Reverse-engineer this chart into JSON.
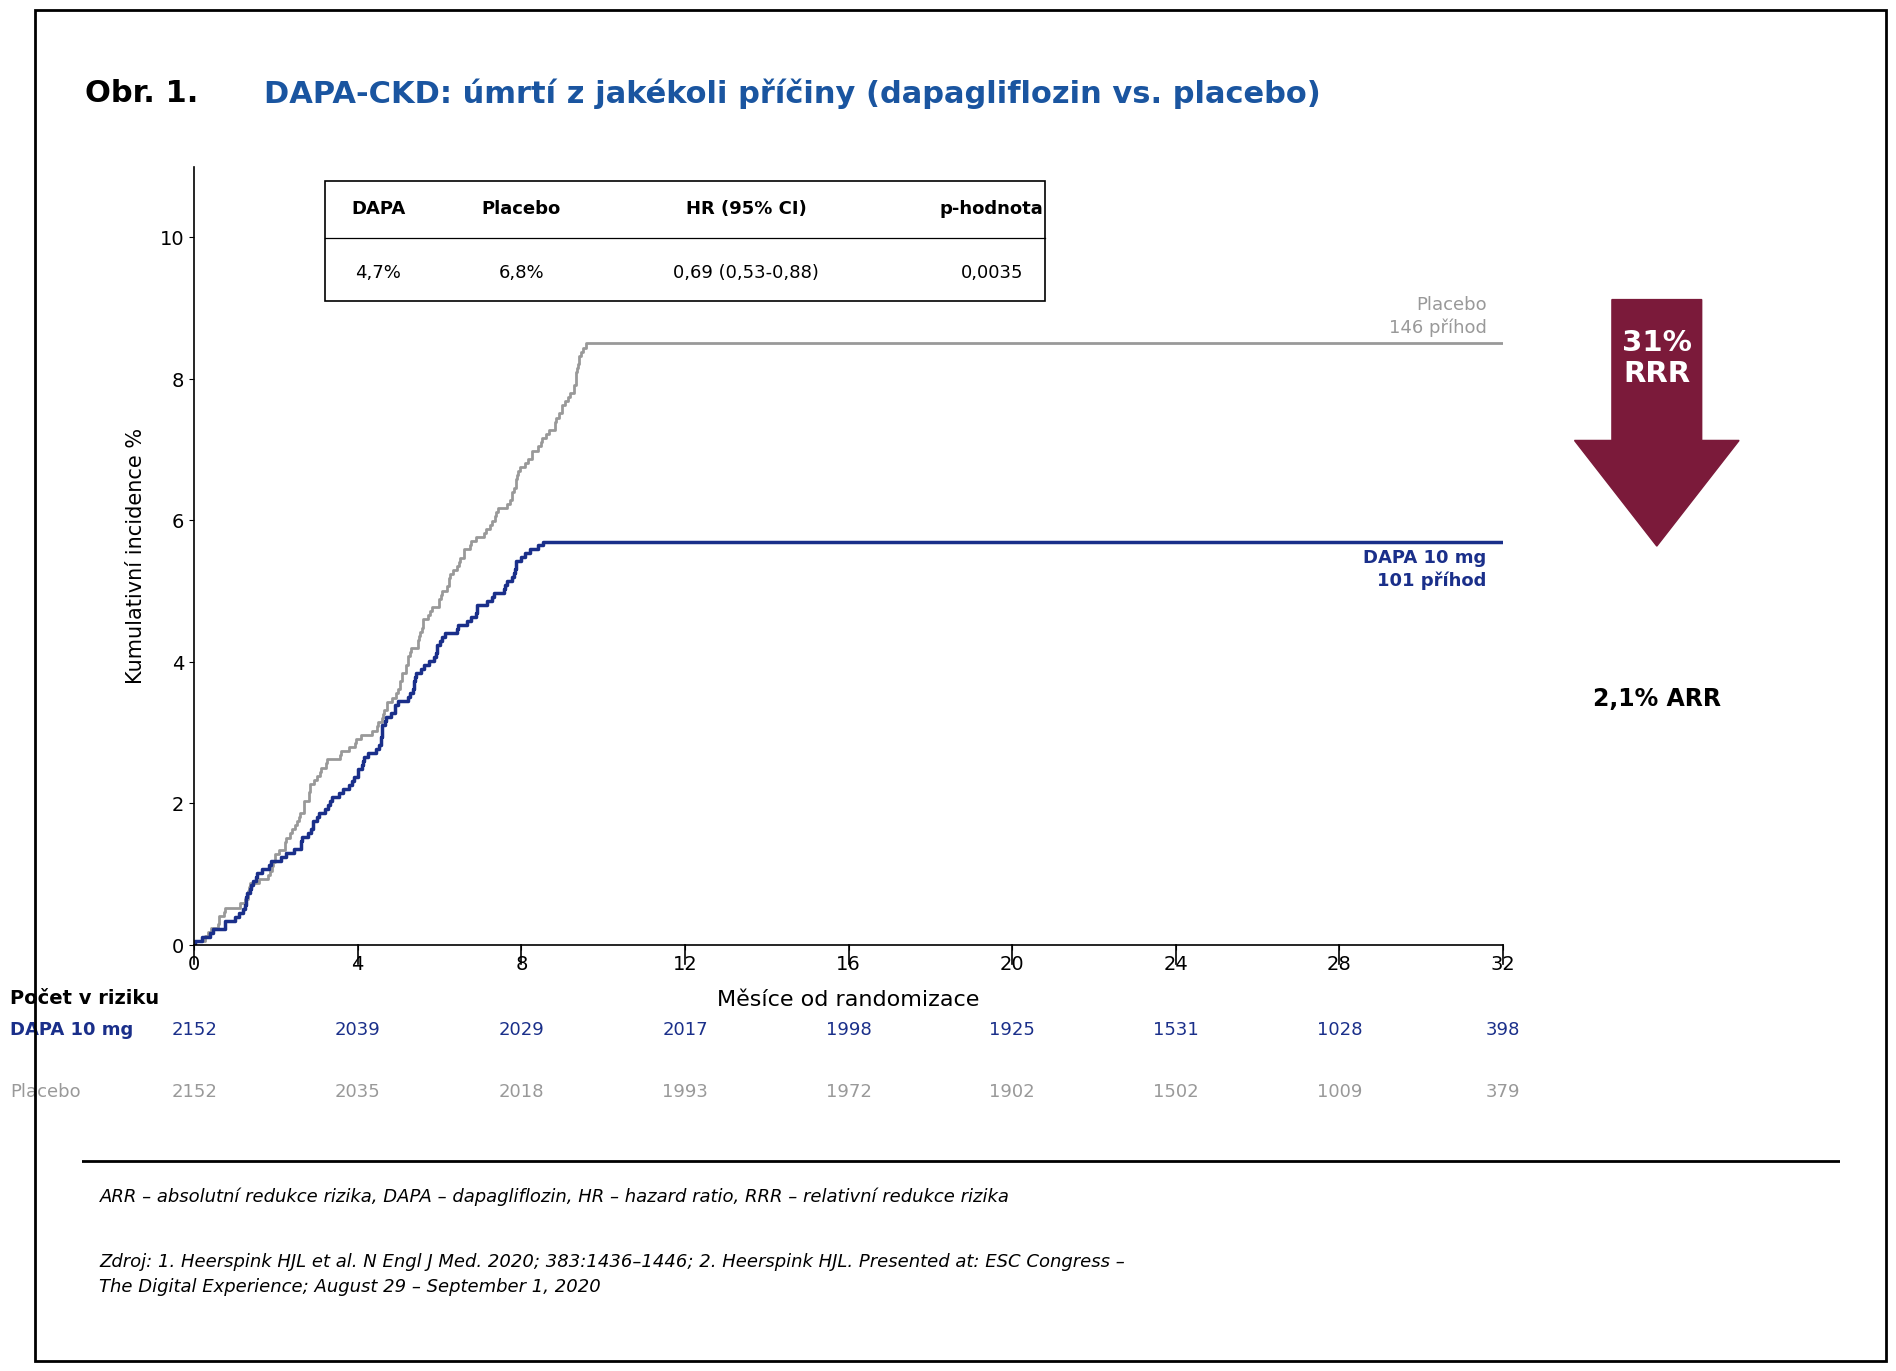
{
  "title_black": "Obr. 1. ",
  "title_blue": "DAPA-CKD: úmrtí z jakékoli příčiny (dapagliflozin vs. placebo)",
  "ylabel": "Kumulativní incidence %",
  "xlabel": "Měsíce od randomizace",
  "xlim": [
    0,
    32
  ],
  "ylim": [
    0,
    11
  ],
  "yticks": [
    0,
    2,
    4,
    6,
    8,
    10
  ],
  "xticks": [
    0,
    4,
    8,
    12,
    16,
    20,
    24,
    28,
    32
  ],
  "dapa_color": "#1a2f8a",
  "placebo_color": "#999999",
  "arrow_color": "#7b1a3a",
  "table_header": [
    "DAPA",
    "Placebo",
    "HR (95% CI)",
    "p-hodnota"
  ],
  "table_row": [
    "4,7%",
    "6,8%",
    "0,69 (0,53-0,88)",
    "0,0035"
  ],
  "dapa_label": "DAPA 10 mg\n101 příhod",
  "placebo_label": "Placebo\n146 příhod",
  "rrr_text": "31%\nRRR",
  "arr_text": "2,1% ARR",
  "risk_header": "Počet v riziku",
  "risk_dapa_label": "DAPA 10 mg",
  "risk_placebo_label": "Placebo",
  "risk_times": [
    0,
    4,
    8,
    12,
    16,
    20,
    24,
    28,
    32
  ],
  "risk_dapa": [
    2152,
    2039,
    2029,
    2017,
    1998,
    1925,
    1531,
    1028,
    398
  ],
  "risk_placebo": [
    2152,
    2035,
    2018,
    1993,
    1972,
    1902,
    1502,
    1009,
    379
  ],
  "footnote1": "ARR – absolutní redukce rizika, DAPA – dapagliflozin, HR – hazard ratio, RRR – relativní redukce rizika",
  "footnote2": "Zdroj: 1. Heerspink HJL et al. N Engl J Med. 2020; 383:1436–1446; 2. Heerspink HJL. Presented at: ESC Congress –\nThe Digital Experience; August 29 – September 1, 2020",
  "bg_color": "#ffffff",
  "border_color": "#000000",
  "placebo_final_pct": 8.5,
  "dapa_final_pct": 5.7
}
